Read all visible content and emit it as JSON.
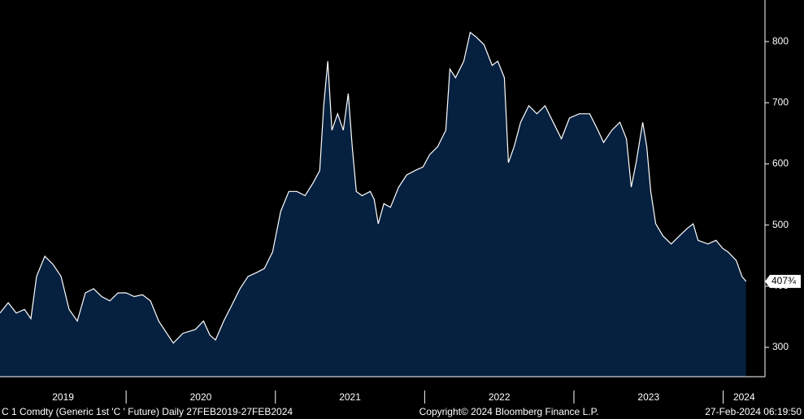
{
  "chart_data": {
    "type": "area",
    "series": [
      {
        "name": "C 1 Comdty",
        "color": "#ffffff",
        "fill": "#06203f",
        "x": [
          2019.155,
          2019.21,
          2019.264,
          2019.319,
          2019.362,
          2019.4,
          2019.455,
          2019.509,
          2019.564,
          2019.618,
          2019.673,
          2019.727,
          2019.782,
          2019.836,
          2019.891,
          2019.945,
          2020.0,
          2020.054,
          2020.109,
          2020.163,
          2020.218,
          2020.272,
          2020.316,
          2020.381,
          2020.463,
          2020.518,
          2020.561,
          2020.599,
          2020.654,
          2020.708,
          2020.763,
          2020.817,
          2020.872,
          2020.926,
          2020.981,
          2021.035,
          2021.09,
          2021.144,
          2021.199,
          2021.253,
          2021.297,
          2021.324,
          2021.351,
          2021.379,
          2021.417,
          2021.455,
          2021.488,
          2021.515,
          2021.542,
          2021.58,
          2021.635,
          2021.662,
          2021.689,
          2021.727,
          2021.771,
          2021.826,
          2021.88,
          2021.935,
          2021.989,
          2022.033,
          2022.087,
          2022.142,
          2022.169,
          2022.207,
          2022.262,
          2022.305,
          2022.343,
          2022.398,
          2022.452,
          2022.49,
          2022.534,
          2022.561,
          2022.599,
          2022.643,
          2022.698,
          2022.752,
          2022.807,
          2022.861,
          2022.916,
          2022.97,
          2023.036,
          2023.106,
          2023.161,
          2023.199,
          2023.254,
          2023.308,
          2023.352,
          2023.384,
          2023.417,
          2023.461,
          2023.488,
          2023.515,
          2023.548,
          2023.597,
          2023.652,
          2023.706,
          2023.761,
          2023.799,
          2023.832,
          2023.897,
          2023.952,
          2023.996,
          2024.033,
          2024.088,
          2024.126,
          2024.153
        ],
        "values": [
          356,
          373,
          356,
          362,
          347,
          416,
          449,
          436,
          416,
          362,
          343,
          389,
          396,
          383,
          376,
          389,
          389,
          383,
          386,
          376,
          343,
          323,
          307,
          323,
          329,
          343,
          320,
          312,
          343,
          369,
          396,
          416,
          422,
          429,
          456,
          522,
          555,
          555,
          548,
          569,
          589,
          695,
          768,
          655,
          682,
          655,
          715,
          628,
          555,
          548,
          555,
          542,
          502,
          535,
          529,
          562,
          582,
          589,
          595,
          615,
          628,
          655,
          755,
          741,
          768,
          815,
          808,
          795,
          761,
          768,
          741,
          602,
          628,
          668,
          695,
          682,
          695,
          668,
          641,
          675,
          682,
          682,
          655,
          635,
          655,
          668,
          641,
          562,
          602,
          668,
          628,
          555,
          502,
          482,
          469,
          482,
          495,
          502,
          475,
          469,
          475,
          462,
          456,
          442,
          416,
          407.75
        ]
      }
    ],
    "last_value": 407.75,
    "last_value_label": "407¾",
    "xlim": [
      2019.155,
      2024.28
    ],
    "xticks": [
      2020,
      2021,
      2022,
      2023,
      2024
    ],
    "year_labels": [
      2019,
      2020,
      2021,
      2022,
      2023,
      2024
    ],
    "ylim": [
      252,
      868
    ],
    "yticks": [
      300,
      400,
      500,
      600,
      700,
      800
    ],
    "footer": {
      "security": "C 1 Comdty (Generic 1st 'C ' Future)  Daily 27FEB2019-27FEB2024",
      "copyright": "Copyright© 2024 Bloomberg Finance L.P.",
      "timestamp": "27-Feb-2024 06:19:50"
    }
  }
}
